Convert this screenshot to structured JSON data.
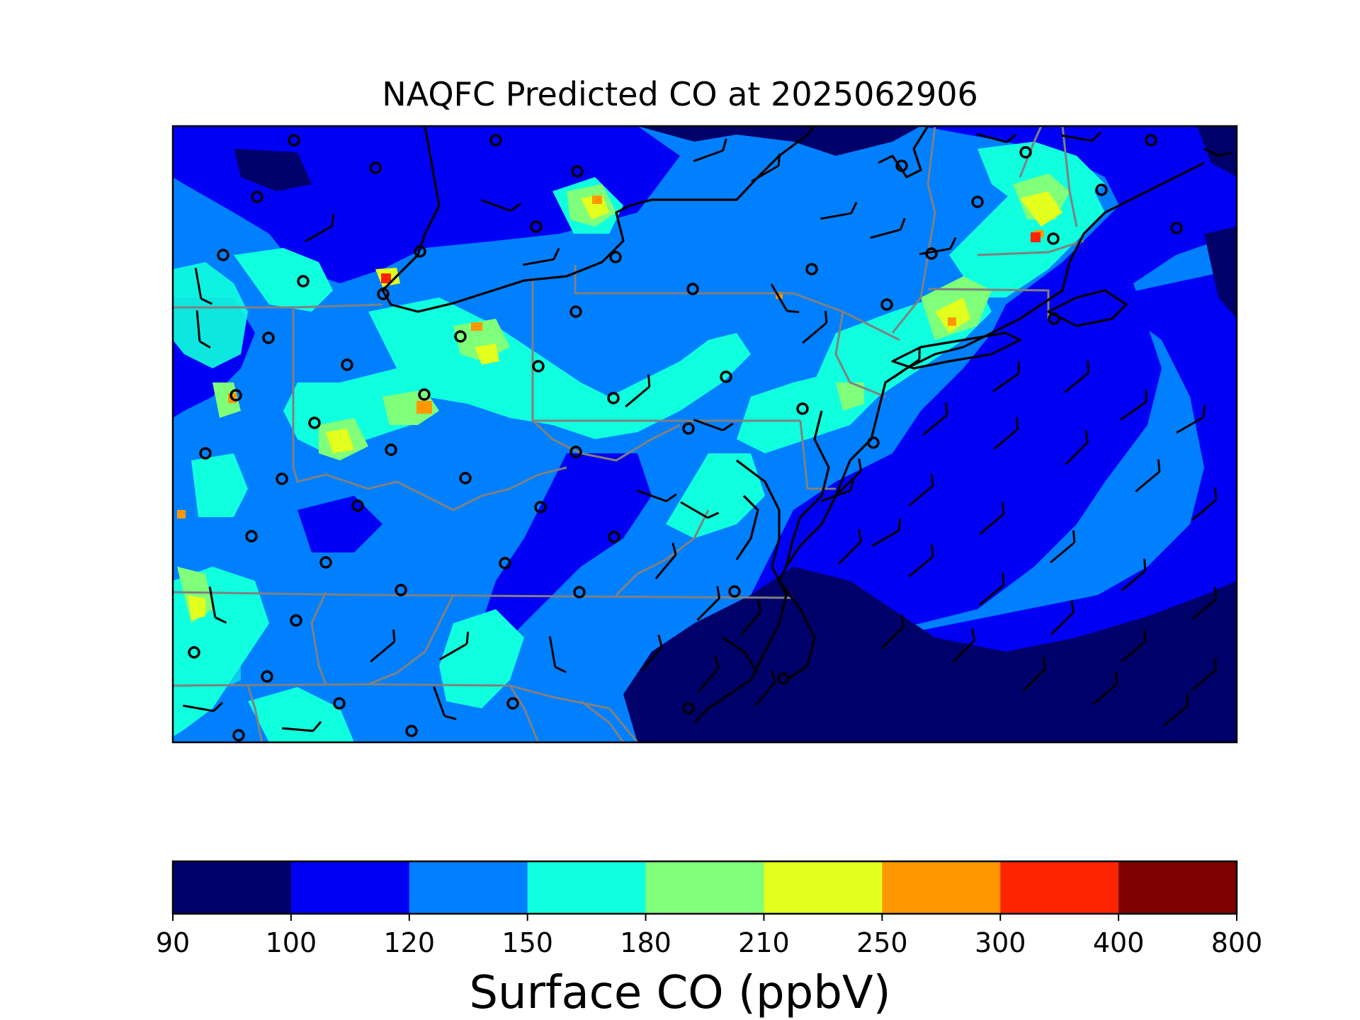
{
  "title": "NAQFC Predicted CO at 2025062906",
  "colorbar": {
    "label": "Surface CO (ppbV)",
    "ticks": [
      "90",
      "100",
      "120",
      "150",
      "180",
      "210",
      "250",
      "300",
      "400",
      "800"
    ],
    "bins": [
      {
        "range": [
          90,
          100
        ],
        "color": "#00006a"
      },
      {
        "range": [
          100,
          120
        ],
        "color": "#0000f5"
      },
      {
        "range": [
          120,
          150
        ],
        "color": "#0080ff"
      },
      {
        "range": [
          150,
          180
        ],
        "color": "#10ffde"
      },
      {
        "range": [
          180,
          210
        ],
        "color": "#80ff7a"
      },
      {
        "range": [
          210,
          250
        ],
        "color": "#e3ff1e"
      },
      {
        "range": [
          250,
          300
        ],
        "color": "#ff9800"
      },
      {
        "range": [
          300,
          400
        ],
        "color": "#ff2400"
      },
      {
        "range": [
          400,
          800
        ],
        "color": "#7f0000"
      }
    ]
  },
  "colors": {
    "coastline": "#000000",
    "state_border": "#808080",
    "station_marker": "#000000",
    "wind_barb": "#000000"
  },
  "map": {
    "projection": "lat-lon",
    "region": "US Mid-Atlantic / Northeast",
    "overlays": [
      "surface CO concentration field",
      "coastlines",
      "state borders",
      "monitoring stations",
      "wind barbs"
    ]
  }
}
